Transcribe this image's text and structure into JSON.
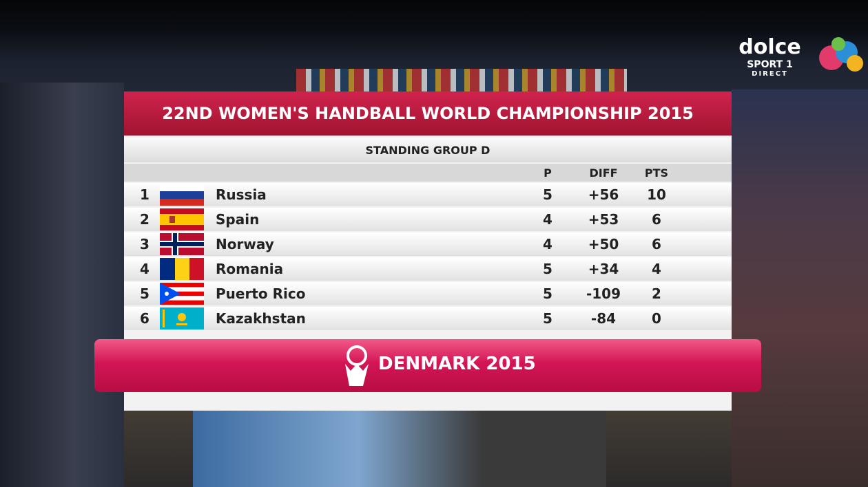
{
  "header": {
    "title": "22ND WOMEN'S HANDBALL WORLD CHAMPIONSHIP 2015",
    "subtitle": "STANDING GROUP D"
  },
  "table": {
    "columns": [
      "P",
      "DIFF",
      "PTS"
    ],
    "rows": [
      [
        "1",
        "Russia",
        "5",
        "+56",
        "10"
      ],
      [
        "2",
        "Spain",
        "4",
        "+53",
        "6"
      ],
      [
        "3",
        "Norway",
        "4",
        "+50",
        "6"
      ],
      [
        "4",
        "Romania",
        "5",
        "+34",
        "4"
      ],
      [
        "5",
        "Puerto Rico",
        "5",
        "-109",
        "2"
      ],
      [
        "6",
        "Kazakhstan",
        "5",
        "-84",
        "0"
      ]
    ]
  },
  "footer": {
    "label": "DENMARK 2015"
  },
  "broadcaster": {
    "name": "dolce",
    "channel": "SPORT 1",
    "tag": "DIRECT"
  }
}
